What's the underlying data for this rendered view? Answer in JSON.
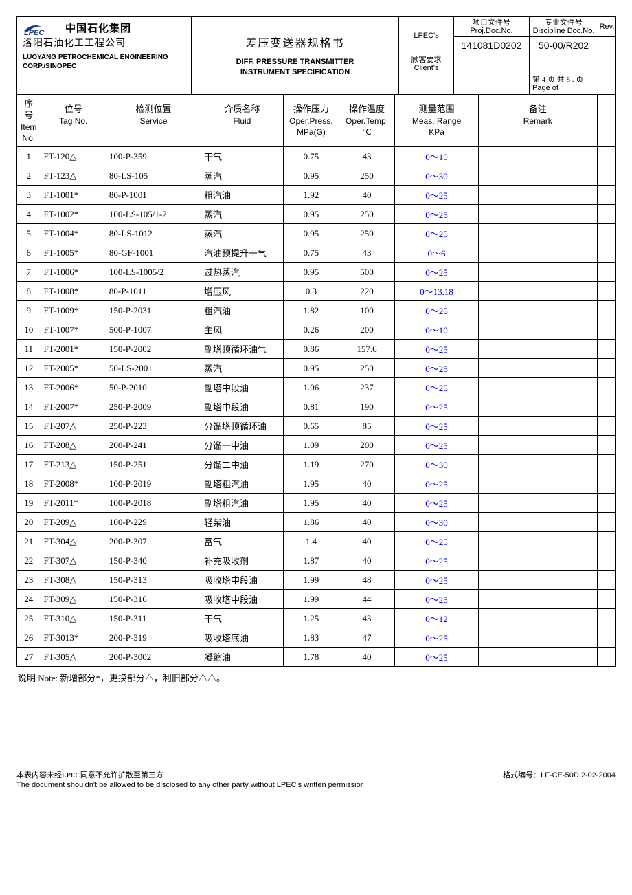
{
  "header": {
    "company_cn1": "中国石化集团",
    "company_cn2": "洛阳石油化工工程公司",
    "company_en": "LUOYANG PETROCHEMICAL ENGINEERING CORP./SINOPEC",
    "title_cn": "差压变送器规格书",
    "title_en1": "DIFF. PRESSURE TRANSMITTER",
    "title_en2": "INSTRUMENT SPECIFICATION",
    "lpec_label": "LPEC's",
    "client_label_cn": "顾客要求",
    "client_label_en": "Client's",
    "proj_doc_label_cn": "项目文件号",
    "proj_doc_label_en": "Proj.Doc.No.",
    "proj_doc_no": "141081D0202",
    "disc_doc_label_cn": "专业文件号",
    "disc_doc_label_en": "Discipline Doc.No.",
    "disc_doc_no": "50-00/R202",
    "rev_label": "Rev.",
    "page_cn": "第 4 页 共 8 . 页",
    "page_en": "Page        of"
  },
  "columns": {
    "no": {
      "cn": "序号",
      "en1": "Item",
      "en2": "No."
    },
    "tag": {
      "cn": "位号",
      "en1": "Tag No."
    },
    "srv": {
      "cn": "检测位置",
      "en1": "Service"
    },
    "fluid": {
      "cn": "介质名称",
      "en1": "Fluid"
    },
    "press": {
      "cn": "操作压力",
      "en1": "Oper.Press.",
      "en2": "MPa(G)"
    },
    "temp": {
      "cn": "操作温度",
      "en1": "Oper.Temp.",
      "en2": "℃"
    },
    "range": {
      "cn": "测量范围",
      "en1": "Meas. Range",
      "en2": "KPa"
    },
    "remark": {
      "cn": "备注",
      "en1": "Remark"
    }
  },
  "rows": [
    {
      "no": "1",
      "tag": "FT-120△",
      "srv": "100-P-359",
      "fluid": "干气",
      "press": "0.75",
      "temp": "43",
      "range": "0～10",
      "remark": ""
    },
    {
      "no": "2",
      "tag": "FT-123△",
      "srv": "80-LS-105",
      "fluid": "蒸汽",
      "press": "0.95",
      "temp": "250",
      "range": "0～30",
      "remark": ""
    },
    {
      "no": "3",
      "tag": "FT-1001*",
      "srv": "80-P-1001",
      "fluid": "粗汽油",
      "press": "1.92",
      "temp": "40",
      "range": "0～25",
      "remark": ""
    },
    {
      "no": "4",
      "tag": "FT-1002*",
      "srv": "100-LS-105/1-2",
      "fluid": "蒸汽",
      "press": "0.95",
      "temp": "250",
      "range": "0～25",
      "remark": ""
    },
    {
      "no": "5",
      "tag": "FT-1004*",
      "srv": "80-LS-1012",
      "fluid": "蒸汽",
      "press": "0.95",
      "temp": "250",
      "range": "0～25",
      "remark": ""
    },
    {
      "no": "6",
      "tag": "FT-1005*",
      "srv": "80-GF-1001",
      "fluid": "汽油预提升干气",
      "press": "0.75",
      "temp": "43",
      "range": "0～6",
      "remark": ""
    },
    {
      "no": "7",
      "tag": "FT-1006*",
      "srv": "100-LS-1005/2",
      "fluid": "过热蒸汽",
      "press": "0.95",
      "temp": "500",
      "range": "0～25",
      "remark": ""
    },
    {
      "no": "8",
      "tag": "FT-1008*",
      "srv": "80-P-1011",
      "fluid": "增压风",
      "press": "0.3",
      "temp": "220",
      "range": "0～13.18",
      "remark": ""
    },
    {
      "no": "9",
      "tag": "FT-1009*",
      "srv": "150-P-2031",
      "fluid": "粗汽油",
      "press": "1.82",
      "temp": "100",
      "range": "0～25",
      "remark": ""
    },
    {
      "no": "10",
      "tag": "FT-1007*",
      "srv": "500-P-1007",
      "fluid": "主风",
      "press": "0.26",
      "temp": "200",
      "range": "0～10",
      "remark": ""
    },
    {
      "no": "11",
      "tag": "FT-2001*",
      "srv": "150-P-2002",
      "fluid": "副塔顶循环油气",
      "press": "0.86",
      "temp": "157.6",
      "range": "0～25",
      "remark": ""
    },
    {
      "no": "12",
      "tag": "FT-2005*",
      "srv": "50-LS-2001",
      "fluid": "蒸汽",
      "press": "0.95",
      "temp": "250",
      "range": "0～25",
      "remark": ""
    },
    {
      "no": "13",
      "tag": "FT-2006*",
      "srv": "50-P-2010",
      "fluid": "副塔中段油",
      "press": "1.06",
      "temp": "237",
      "range": "0～25",
      "remark": ""
    },
    {
      "no": "14",
      "tag": "FT-2007*",
      "srv": "250-P-2009",
      "fluid": "副塔中段油",
      "press": "0.81",
      "temp": "190",
      "range": "0～25",
      "remark": ""
    },
    {
      "no": "15",
      "tag": "FT-207△",
      "srv": "250-P-223",
      "fluid": "分馏塔顶循环油",
      "press": "0.65",
      "temp": "85",
      "range": "0～25",
      "remark": ""
    },
    {
      "no": "16",
      "tag": "FT-208△",
      "srv": "200-P-241",
      "fluid": "分馏一中油",
      "press": "1.09",
      "temp": "200",
      "range": "0～25",
      "remark": ""
    },
    {
      "no": "17",
      "tag": "FT-213△",
      "srv": "150-P-251",
      "fluid": "分馏二中油",
      "press": "1.19",
      "temp": "270",
      "range": "0～30",
      "remark": ""
    },
    {
      "no": "18",
      "tag": "FT-2008*",
      "srv": "100-P-2019",
      "fluid": "副塔粗汽油",
      "press": "1.95",
      "temp": "40",
      "range": "0～25",
      "remark": ""
    },
    {
      "no": "19",
      "tag": "FT-2011*",
      "srv": "100-P-2018",
      "fluid": "副塔粗汽油",
      "press": "1.95",
      "temp": "40",
      "range": "0～25",
      "remark": ""
    },
    {
      "no": "20",
      "tag": "FT-209△",
      "srv": "100-P-229",
      "fluid": "轻柴油",
      "press": "1.86",
      "temp": "40",
      "range": "0～30",
      "remark": ""
    },
    {
      "no": "21",
      "tag": "FT-304△",
      "srv": "200-P-307",
      "fluid": "富气",
      "press": "1.4",
      "temp": "40",
      "range": "0～25",
      "remark": ""
    },
    {
      "no": "22",
      "tag": "FT-307△",
      "srv": "150-P-340",
      "fluid": "补充吸收剂",
      "press": "1.87",
      "temp": "40",
      "range": "0～25",
      "remark": ""
    },
    {
      "no": "23",
      "tag": "FT-308△",
      "srv": "150-P-313",
      "fluid": "吸收塔中段油",
      "press": "1.99",
      "temp": "48",
      "range": "0～25",
      "remark": ""
    },
    {
      "no": "24",
      "tag": "FT-309△",
      "srv": "150-P-316",
      "fluid": "吸收塔中段油",
      "press": "1.99",
      "temp": "44",
      "range": "0～25",
      "remark": ""
    },
    {
      "no": "25",
      "tag": "FT-310△",
      "srv": "150-P-311",
      "fluid": "干气",
      "press": "1.25",
      "temp": "43",
      "range": "0～12",
      "remark": ""
    },
    {
      "no": "26",
      "tag": "FT-3013*",
      "srv": "200-P-319",
      "fluid": "吸收塔底油",
      "press": "1.83",
      "temp": "47",
      "range": "0～25",
      "remark": ""
    },
    {
      "no": "27",
      "tag": "FT-305△",
      "srv": "200-P-3002",
      "fluid": "凝缩油",
      "press": "1.78",
      "temp": "40",
      "range": "0～25",
      "remark": ""
    }
  ],
  "note": "说明 Note: 新增部分*，更换部分△，利旧部分△△。",
  "footer": {
    "cn": "本表内容未经LPEC同意不允许扩散至第三方",
    "en": "The document shouldn't be allowed to be disclosed to any other party without LPEC's written permissior",
    "form_no": "格式编号：LF-CE-50D.2-02-2004"
  },
  "style": {
    "range_color": "#0000ff",
    "border_color": "#000000",
    "background": "#ffffff"
  }
}
